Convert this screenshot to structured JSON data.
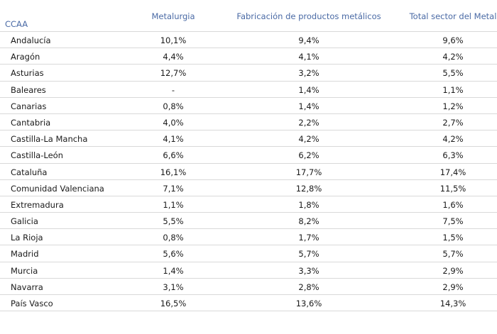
{
  "table": {
    "headers": {
      "ccaa": "CCAA",
      "metalurgia": "Metalurgia",
      "fabricacion": "Fabricación de productos metálicos",
      "total": "Total sector del Metal"
    },
    "rows": [
      {
        "name": "Andalucía",
        "metalurgia": "10,1%",
        "fabricacion": "9,4%",
        "total": "9,6%"
      },
      {
        "name": "Aragón",
        "metalurgia": "4,4%",
        "fabricacion": "4,1%",
        "total": "4,2%"
      },
      {
        "name": "Asturias",
        "metalurgia": "12,7%",
        "fabricacion": "3,2%",
        "total": "5,5%"
      },
      {
        "name": "Baleares",
        "metalurgia": "-",
        "fabricacion": "1,4%",
        "total": "1,1%"
      },
      {
        "name": "Canarias",
        "metalurgia": "0,8%",
        "fabricacion": "1,4%",
        "total": "1,2%"
      },
      {
        "name": "Cantabria",
        "metalurgia": "4,0%",
        "fabricacion": "2,2%",
        "total": "2,7%"
      },
      {
        "name": "Castilla-La Mancha",
        "metalurgia": "4,1%",
        "fabricacion": "4,2%",
        "total": "4,2%"
      },
      {
        "name": "Castilla-León",
        "metalurgia": "6,6%",
        "fabricacion": "6,2%",
        "total": "6,3%"
      },
      {
        "name": "Cataluña",
        "metalurgia": "16,1%",
        "fabricacion": "17,7%",
        "total": "17,4%"
      },
      {
        "name": "Comunidad Valenciana",
        "metalurgia": "7,1%",
        "fabricacion": "12,8%",
        "total": "11,5%"
      },
      {
        "name": "Extremadura",
        "metalurgia": "1,1%",
        "fabricacion": "1,8%",
        "total": "1,6%"
      },
      {
        "name": "Galicia",
        "metalurgia": "5,5%",
        "fabricacion": "8,2%",
        "total": "7,5%"
      },
      {
        "name": "La Rioja",
        "metalurgia": "0,8%",
        "fabricacion": "1,7%",
        "total": "1,5%"
      },
      {
        "name": "Madrid",
        "metalurgia": "5,6%",
        "fabricacion": "5,7%",
        "total": "5,7%"
      },
      {
        "name": "Murcia",
        "metalurgia": "1,4%",
        "fabricacion": "3,3%",
        "total": "2,9%"
      },
      {
        "name": "Navarra",
        "metalurgia": "3,1%",
        "fabricacion": "2,8%",
        "total": "2,9%"
      },
      {
        "name": "País Vasco",
        "metalurgia": "16,5%",
        "fabricacion": "13,6%",
        "total": "14,3%"
      }
    ]
  },
  "colors": {
    "header_text": "#4a6aa5",
    "body_text": "#1a1a1a",
    "row_divider": "#d9d9d9"
  }
}
